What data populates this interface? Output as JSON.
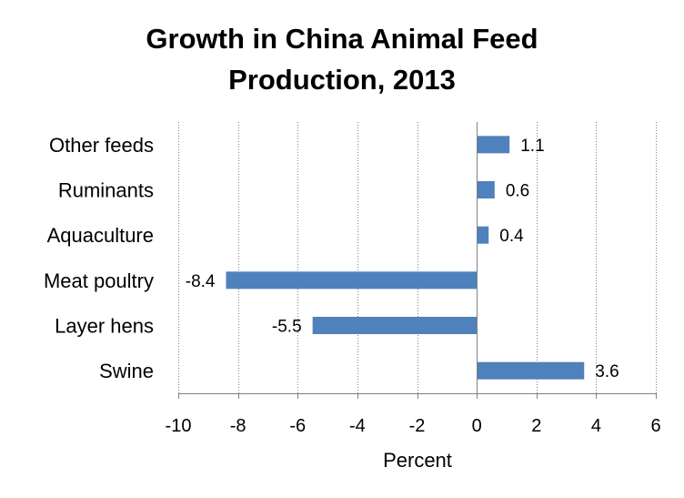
{
  "chart_data": {
    "type": "bar",
    "orientation": "horizontal",
    "title_lines": [
      "Growth in China Animal Feed",
      "Production, 2013"
    ],
    "categories": [
      "Other feeds",
      "Ruminants",
      "Aquaculture",
      "Meat poultry",
      "Layer hens",
      "Swine"
    ],
    "values": [
      1.1,
      0.6,
      0.4,
      -8.4,
      -5.5,
      3.6
    ],
    "value_labels": [
      "1.1",
      "0.6",
      "0.4",
      "-8.4",
      "-5.5",
      "3.6"
    ],
    "xlabel": "Percent",
    "ylabel": "",
    "xlim": [
      -10,
      6
    ],
    "xticks": [
      -10,
      -8,
      -6,
      -4,
      -2,
      0,
      2,
      4,
      6
    ],
    "xtick_labels": [
      "-10",
      "-8",
      "-6",
      "-4",
      "-2",
      "0",
      "2",
      "4",
      "6"
    ],
    "grid": true,
    "legend": "none",
    "bar_color": "#4F81BD"
  }
}
